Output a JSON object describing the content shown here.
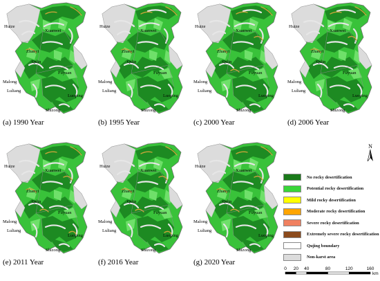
{
  "panels": [
    {
      "caption": "(a) 1990 Year",
      "bare": 3,
      "ochre": 3
    },
    {
      "caption": "(b) 1995 Year",
      "bare": 4,
      "ochre": 3
    },
    {
      "caption": "(c) 2000 Year",
      "bare": 5,
      "ochre": 5
    },
    {
      "caption": "(d) 2006 Year",
      "bare": 5,
      "ochre": 4
    },
    {
      "caption": "(e) 2011 Year",
      "bare": 3,
      "ochre": 6
    },
    {
      "caption": "(f) 2016 Year",
      "bare": 3,
      "ochre": 6
    },
    {
      "caption": "(g) 2020 Year",
      "bare": 3,
      "ochre": 5
    }
  ],
  "place_names": {
    "huize": "Huize",
    "xuanwei": "Xuanwei",
    "qilin": "Qilin",
    "fuyuan": "Fuyuan",
    "malong": "Malong",
    "luliang": "Luliang",
    "shizong": "Shizong",
    "luoping": "Luoping",
    "zhanyi": "Zhanyi"
  },
  "north_label": "N",
  "legend": [
    {
      "label": "No rocky desertification",
      "color": "#1a7a1a"
    },
    {
      "label": "Potential rocky desertification",
      "color": "#39d639"
    },
    {
      "label": "Mild rocky desertification",
      "color": "#ffff00"
    },
    {
      "label": "Moderate rocky desertification",
      "color": "#ffa500"
    },
    {
      "label": "Severe rocky desertification",
      "color": "#f08060"
    },
    {
      "label": "Extremely severe rocky desertification",
      "color": "#8b4a1c"
    },
    {
      "label": "Qujing boundary",
      "color": "#ffffff"
    },
    {
      "label": "Non-karst area",
      "color": "#dcdcdc"
    }
  ],
  "scale": {
    "ticks": [
      "0",
      "20",
      "40",
      "80",
      "120",
      "160"
    ],
    "unit": "km"
  }
}
